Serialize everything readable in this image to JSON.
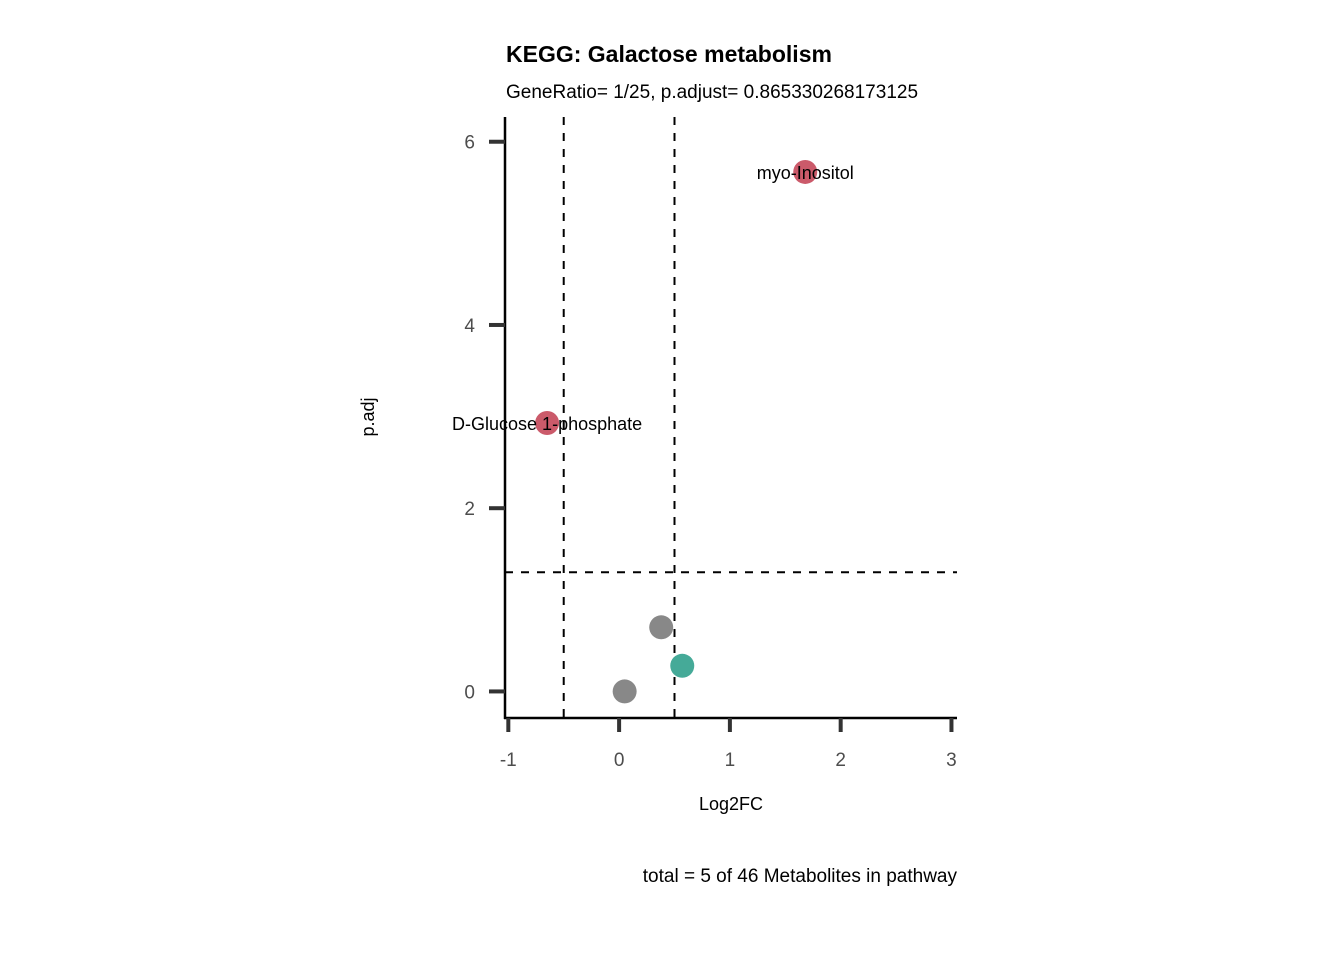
{
  "chart_data": {
    "type": "scatter",
    "title": "KEGG: Galactose metabolism",
    "subtitle": "GeneRatio= 1/25, p.adjust= 0.865330268173125",
    "xlabel": "Log2FC",
    "ylabel": "p.adj",
    "caption": "total = 5 of 46 Metabolites in pathway",
    "xlim": [
      -1.03,
      3.05
    ],
    "ylim": [
      -0.29,
      6.27
    ],
    "xticks": [
      -1,
      0,
      1,
      2,
      3
    ],
    "xtick_labels": [
      "-1",
      "0",
      "1",
      "2",
      "3"
    ],
    "yticks": [
      0,
      2,
      4,
      6
    ],
    "ytick_labels": [
      "0",
      "2",
      "4",
      "6"
    ],
    "grid": false,
    "vlines": [
      -0.5,
      0.5
    ],
    "hlines": [
      1.301
    ],
    "colors": {
      "up": "#CB5A6A",
      "down": "#45AA98",
      "ns": "#888888"
    },
    "points": [
      {
        "x": 1.68,
        "y": 5.67,
        "group": "up",
        "label": "myo-Inositol"
      },
      {
        "x": -0.65,
        "y": 2.93,
        "group": "up",
        "label": "D-Glucose 1-phosphate"
      },
      {
        "x": 0.38,
        "y": 0.7,
        "group": "ns",
        "label": ""
      },
      {
        "x": 0.57,
        "y": 0.28,
        "group": "down",
        "label": ""
      },
      {
        "x": 0.05,
        "y": 0.0,
        "group": "ns",
        "label": ""
      }
    ]
  }
}
